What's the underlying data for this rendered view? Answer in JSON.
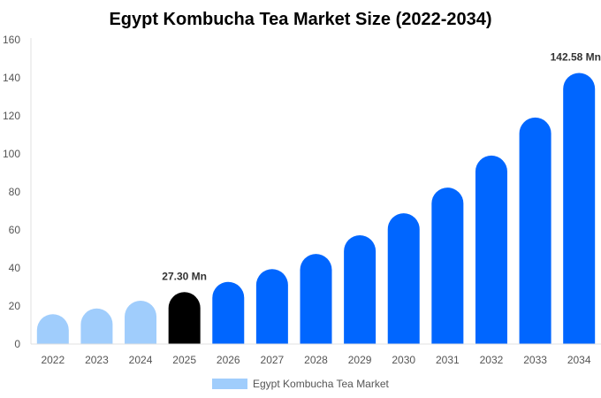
{
  "chart_data": {
    "type": "bar",
    "title": "Egypt Kombucha Tea Market Size (2022-2034)",
    "xlabel": "",
    "ylabel": "",
    "ylim": [
      0,
      160
    ],
    "yticks": [
      0,
      20,
      40,
      60,
      80,
      100,
      120,
      140,
      160
    ],
    "grid": false,
    "legend_position": "bottom",
    "categories": [
      "2022",
      "2023",
      "2024",
      "2025",
      "2026",
      "2027",
      "2028",
      "2029",
      "2030",
      "2031",
      "2032",
      "2033",
      "2034"
    ],
    "series": [
      {
        "name": "Egypt Kombucha Tea Market",
        "values": [
          15.7,
          18.7,
          22.8,
          27.3,
          32.7,
          39.4,
          47.4,
          57.2,
          68.8,
          82.3,
          99.1,
          119.1,
          142.58
        ]
      }
    ],
    "bar_colors": {
      "historical": "#a0cdfc",
      "current": "#000000",
      "forecast": "#0066ff"
    },
    "bar_color_groups": [
      "historical",
      "historical",
      "historical",
      "current",
      "forecast",
      "forecast",
      "forecast",
      "forecast",
      "forecast",
      "forecast",
      "forecast",
      "forecast",
      "forecast"
    ],
    "data_labels": [
      {
        "category": "2025",
        "text": "27.30 Mn"
      },
      {
        "category": "2034",
        "text": "142.58 Mn"
      }
    ]
  }
}
